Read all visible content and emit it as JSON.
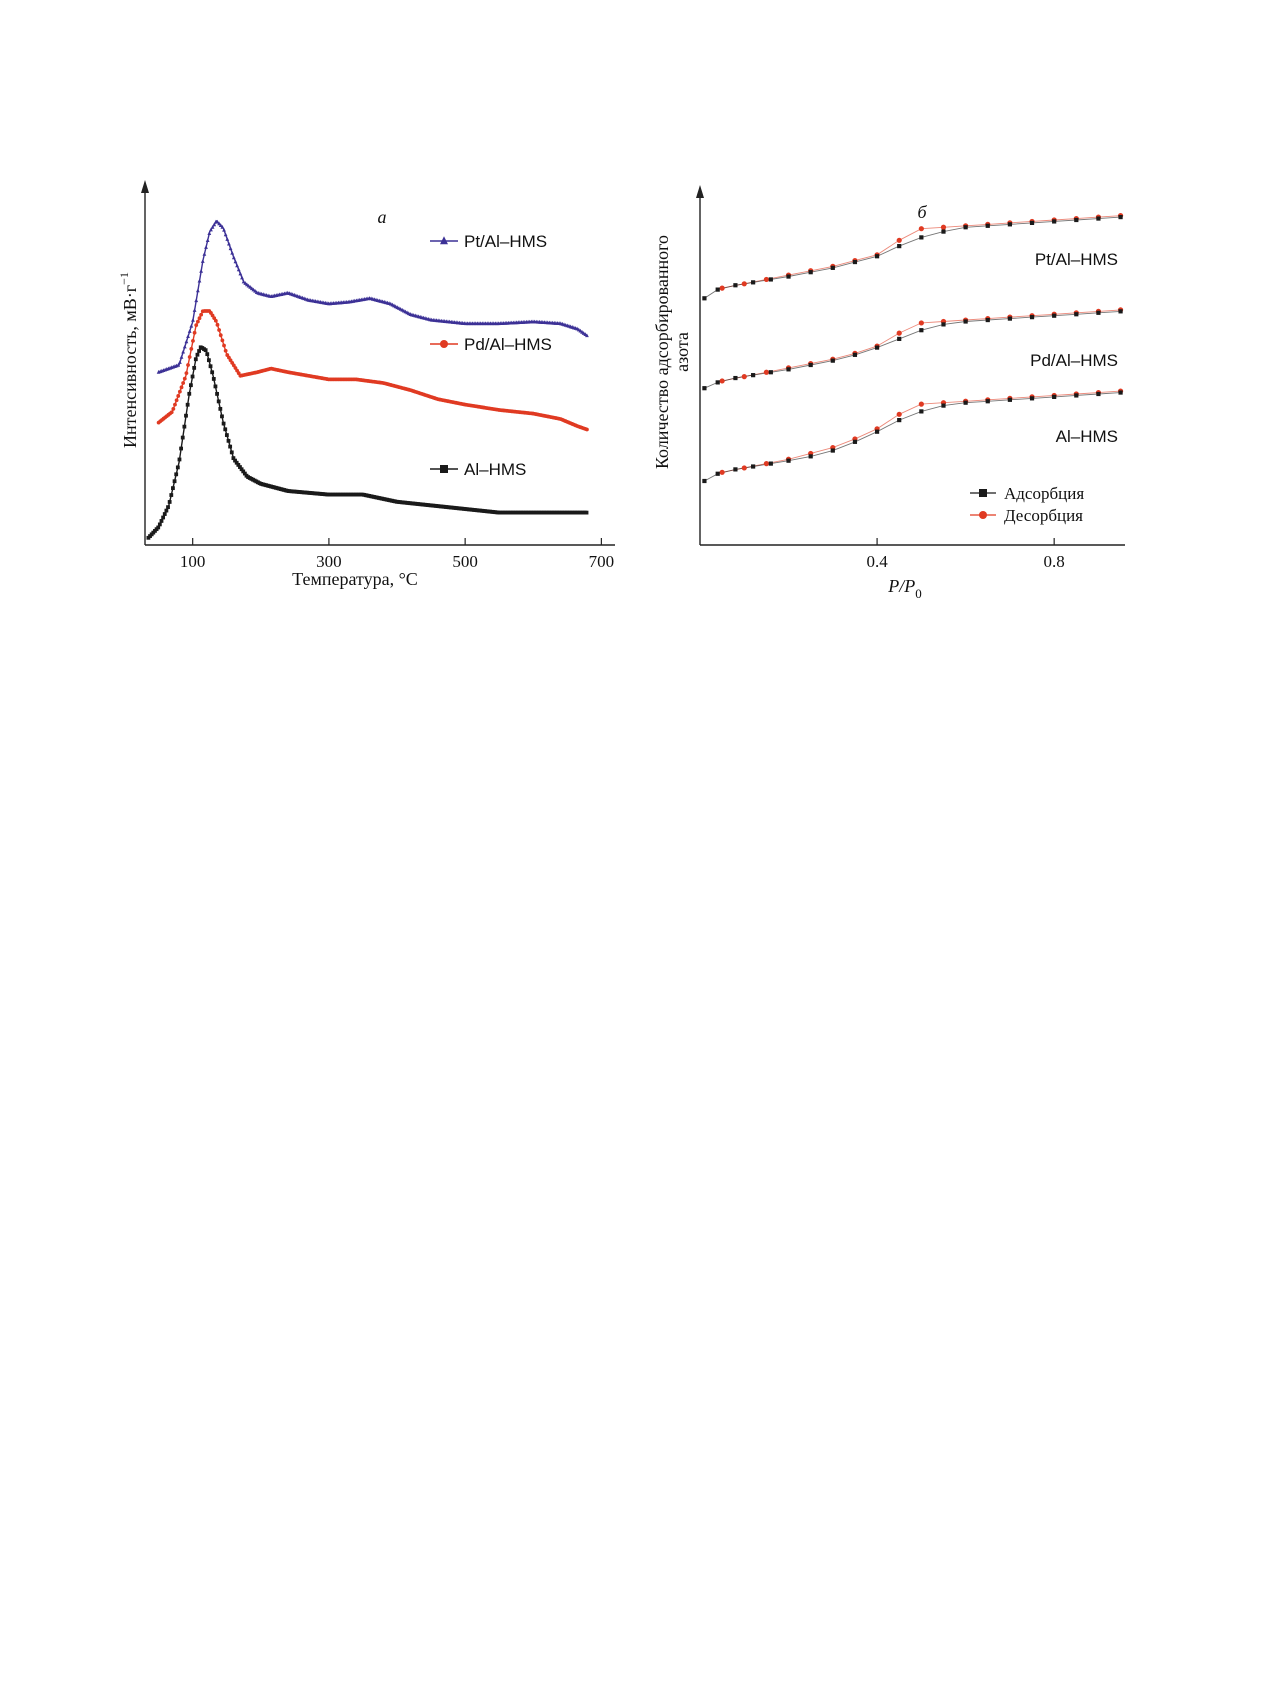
{
  "chart_data": [
    {
      "type": "line",
      "panel": "а",
      "title": "",
      "xlabel": "Температура, °C",
      "ylabel": "Интенсивность, мВ·г",
      "ylabel_sup": "−1",
      "xlim": [
        30,
        720
      ],
      "xticks": [
        "100",
        "300",
        "500",
        "700"
      ],
      "xtick_values": [
        100,
        300,
        500,
        700
      ],
      "y_ticks_shown": false,
      "grid": false,
      "legend": "inline labels beside each curve",
      "series": [
        {
          "name": "Pt/Al–HMS",
          "color": "#3c3196",
          "marker": "triangle",
          "x": [
            50,
            80,
            100,
            115,
            125,
            135,
            145,
            160,
            175,
            195,
            215,
            240,
            270,
            300,
            330,
            360,
            390,
            420,
            450,
            500,
            550,
            600,
            640,
            665,
            680
          ],
          "y": [
            0.48,
            0.5,
            0.62,
            0.79,
            0.87,
            0.9,
            0.88,
            0.8,
            0.73,
            0.7,
            0.69,
            0.7,
            0.68,
            0.67,
            0.675,
            0.685,
            0.67,
            0.64,
            0.625,
            0.615,
            0.615,
            0.62,
            0.615,
            0.6,
            0.58
          ]
        },
        {
          "name": "Pd/Al–HMS",
          "color": "#e03a22",
          "marker": "circle",
          "x": [
            50,
            70,
            90,
            105,
            115,
            125,
            135,
            150,
            170,
            195,
            215,
            240,
            270,
            300,
            340,
            380,
            420,
            460,
            500,
            550,
            600,
            640,
            665,
            680
          ],
          "y": [
            0.34,
            0.37,
            0.47,
            0.61,
            0.65,
            0.65,
            0.62,
            0.53,
            0.47,
            0.48,
            0.49,
            0.48,
            0.47,
            0.46,
            0.46,
            0.45,
            0.43,
            0.405,
            0.39,
            0.375,
            0.365,
            0.35,
            0.33,
            0.32
          ]
        },
        {
          "name": "Al–HMS",
          "color": "#1a1a1a",
          "marker": "square",
          "x": [
            35,
            50,
            65,
            80,
            95,
            105,
            112,
            120,
            130,
            145,
            160,
            180,
            200,
            240,
            300,
            350,
            400,
            450,
            500,
            550,
            600,
            650,
            680
          ],
          "y": [
            0.02,
            0.05,
            0.11,
            0.23,
            0.42,
            0.52,
            0.55,
            0.54,
            0.47,
            0.34,
            0.24,
            0.19,
            0.17,
            0.15,
            0.14,
            0.14,
            0.12,
            0.11,
            0.1,
            0.09,
            0.09,
            0.09,
            0.09
          ]
        }
      ]
    },
    {
      "type": "line",
      "panel": "б",
      "title": "",
      "xlabel": "P/P",
      "xlabel_sub": "0",
      "ylabel": [
        "Количество адсорбированного",
        "азота"
      ],
      "xlim": [
        0,
        0.96
      ],
      "xticks": [
        "0.4",
        "0.8"
      ],
      "xtick_values": [
        0.4,
        0.8
      ],
      "y_ticks_shown": false,
      "grid": false,
      "legend": "bottom-right",
      "legend_entries": [
        {
          "label": "Адсорбция",
          "color": "#1a1a1a",
          "marker": "square"
        },
        {
          "label": "Десорбция",
          "color": "#e03a22",
          "marker": "circle"
        }
      ],
      "groups": [
        {
          "label": "Pt/Al–HMS",
          "adsorption": {
            "x": [
              0.01,
              0.04,
              0.08,
              0.12,
              0.16,
              0.2,
              0.25,
              0.3,
              0.35,
              0.4,
              0.45,
              0.5,
              0.55,
              0.6,
              0.65,
              0.7,
              0.75,
              0.8,
              0.85,
              0.9,
              0.95
            ],
            "y": [
              0.73,
              0.76,
              0.775,
              0.785,
              0.795,
              0.805,
              0.82,
              0.835,
              0.855,
              0.875,
              0.91,
              0.94,
              0.96,
              0.975,
              0.98,
              0.985,
              0.99,
              0.995,
              1.0,
              1.005,
              1.01
            ]
          },
          "desorption": {
            "x": [
              0.95,
              0.9,
              0.85,
              0.8,
              0.75,
              0.7,
              0.65,
              0.6,
              0.55,
              0.5,
              0.45,
              0.4,
              0.35,
              0.3,
              0.25,
              0.2,
              0.15,
              0.1,
              0.05
            ],
            "y": [
              1.015,
              1.01,
              1.005,
              1.0,
              0.995,
              0.99,
              0.985,
              0.98,
              0.975,
              0.97,
              0.93,
              0.88,
              0.86,
              0.84,
              0.825,
              0.81,
              0.795,
              0.78,
              0.765
            ]
          }
        },
        {
          "label": "Pd/Al–HMS",
          "adsorption": {
            "x": [
              0.01,
              0.04,
              0.08,
              0.12,
              0.16,
              0.2,
              0.25,
              0.3,
              0.35,
              0.4,
              0.45,
              0.5,
              0.55,
              0.6,
              0.65,
              0.7,
              0.75,
              0.8,
              0.85,
              0.9,
              0.95
            ],
            "y": [
              0.42,
              0.44,
              0.455,
              0.465,
              0.475,
              0.485,
              0.5,
              0.515,
              0.535,
              0.56,
              0.59,
              0.62,
              0.64,
              0.65,
              0.655,
              0.66,
              0.665,
              0.67,
              0.675,
              0.68,
              0.685
            ]
          },
          "desorption": {
            "x": [
              0.95,
              0.9,
              0.85,
              0.8,
              0.75,
              0.7,
              0.65,
              0.6,
              0.55,
              0.5,
              0.45,
              0.4,
              0.35,
              0.3,
              0.25,
              0.2,
              0.15,
              0.1,
              0.05
            ],
            "y": [
              0.69,
              0.685,
              0.68,
              0.675,
              0.67,
              0.665,
              0.66,
              0.655,
              0.65,
              0.645,
              0.61,
              0.565,
              0.54,
              0.52,
              0.505,
              0.49,
              0.475,
              0.46,
              0.445
            ]
          }
        },
        {
          "label": "Al–HMS",
          "adsorption": {
            "x": [
              0.01,
              0.04,
              0.08,
              0.12,
              0.16,
              0.2,
              0.25,
              0.3,
              0.35,
              0.4,
              0.45,
              0.5,
              0.55,
              0.6,
              0.65,
              0.7,
              0.75,
              0.8,
              0.85,
              0.9,
              0.95
            ],
            "y": [
              0.1,
              0.125,
              0.14,
              0.15,
              0.16,
              0.17,
              0.185,
              0.205,
              0.235,
              0.27,
              0.31,
              0.34,
              0.36,
              0.37,
              0.375,
              0.38,
              0.385,
              0.39,
              0.395,
              0.4,
              0.405
            ]
          },
          "desorption": {
            "x": [
              0.95,
              0.9,
              0.85,
              0.8,
              0.75,
              0.7,
              0.65,
              0.6,
              0.55,
              0.5,
              0.45,
              0.4,
              0.35,
              0.3,
              0.25,
              0.2,
              0.15,
              0.1,
              0.05
            ],
            "y": [
              0.41,
              0.405,
              0.4,
              0.395,
              0.39,
              0.385,
              0.38,
              0.375,
              0.37,
              0.365,
              0.33,
              0.28,
              0.245,
              0.215,
              0.195,
              0.175,
              0.16,
              0.145,
              0.13
            ]
          }
        }
      ]
    }
  ]
}
